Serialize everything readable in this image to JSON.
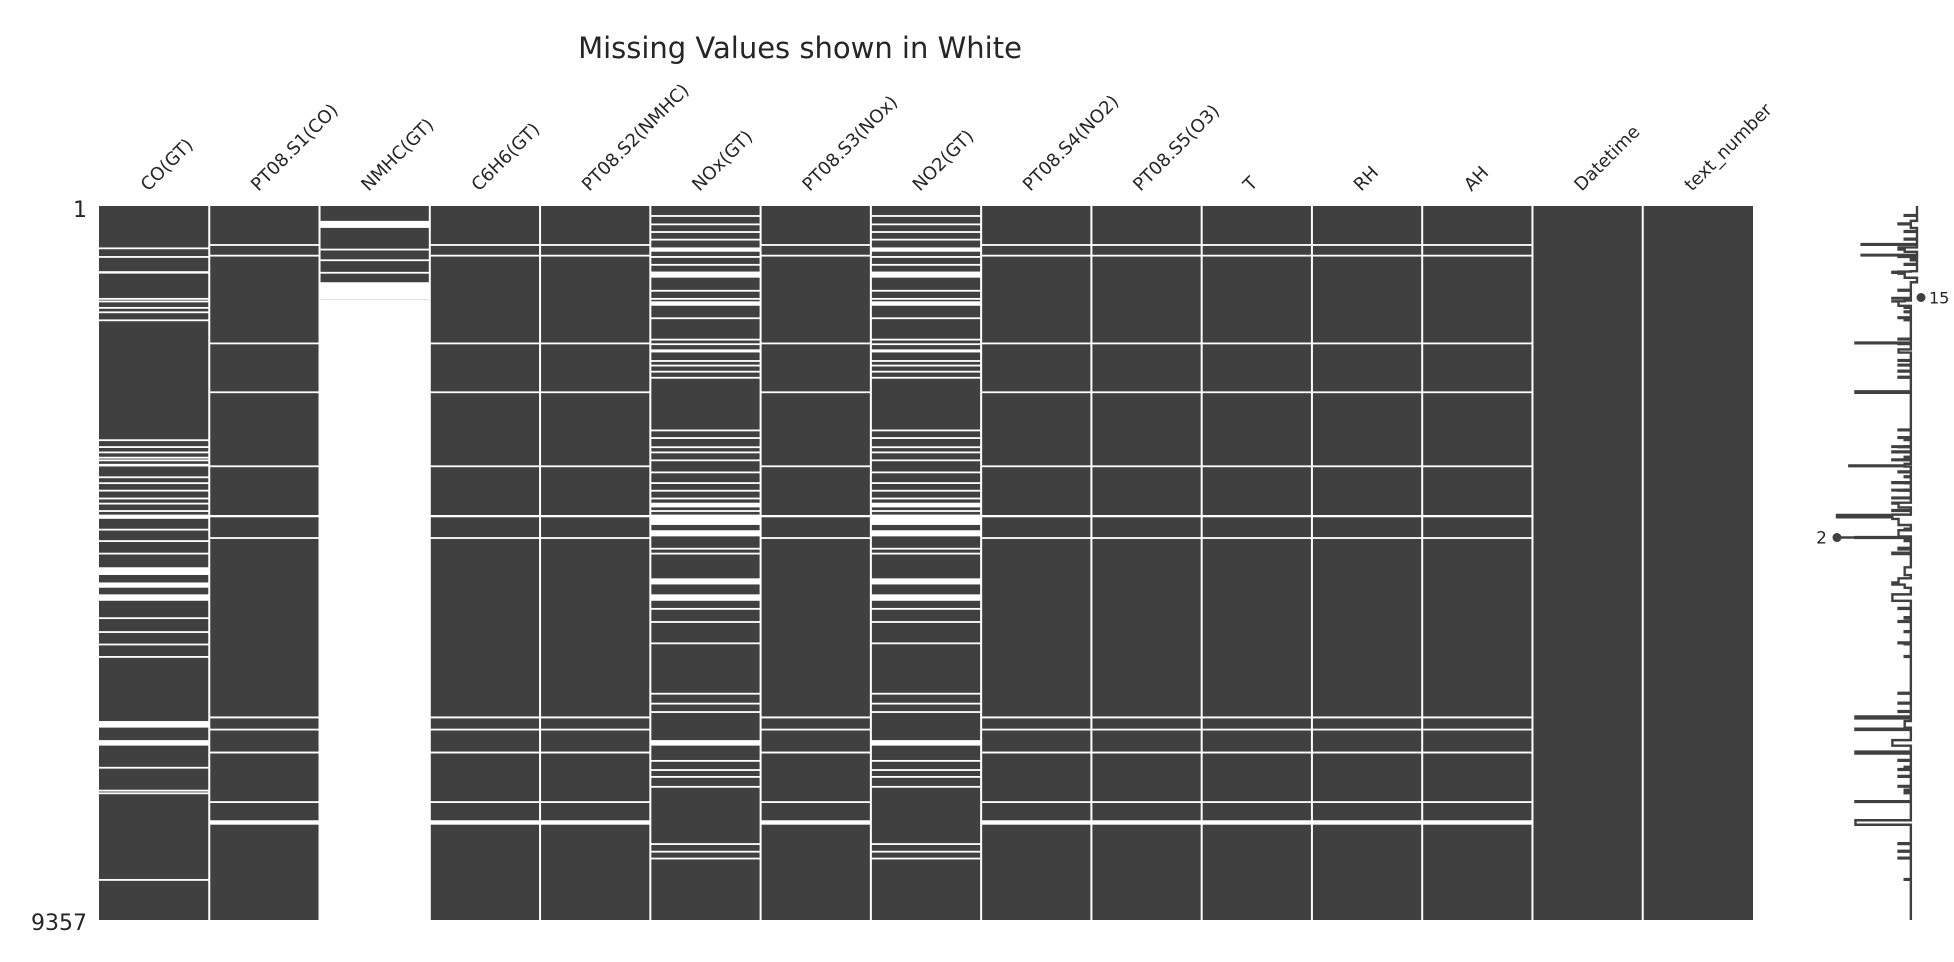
{
  "chart_data": {
    "type": "heatmap",
    "title": "Missing Values shown in White",
    "columns": [
      "CO(GT)",
      "PT08.S1(CO)",
      "NMHC(GT)",
      "C6H6(GT)",
      "PT08.S2(NMHC)",
      "NOx(GT)",
      "PT08.S3(NOx)",
      "NO2(GT)",
      "PT08.S4(NO2)",
      "PT08.S5(O3)",
      "T",
      "RH",
      "AH",
      "Datetime",
      "text_number"
    ],
    "row_labels": {
      "first": "1",
      "last": "9357"
    },
    "n_rows": 9357,
    "colors": {
      "present": "#404040",
      "missing": "#ffffff"
    },
    "missing_blocks": [
      {
        "column": "CO(GT)",
        "rows": [
          [
            544,
            555
          ],
          [
            657,
            667
          ],
          [
            855,
            887
          ],
          [
            1206,
            1213
          ],
          [
            1240,
            1251
          ],
          [
            1324,
            1334
          ],
          [
            1382,
            1391
          ],
          [
            1487,
            1496
          ],
          [
            3058,
            3067
          ],
          [
            3148,
            3157
          ],
          [
            3218,
            3227
          ],
          [
            3287,
            3296
          ],
          [
            3322,
            3331
          ],
          [
            3380,
            3414
          ],
          [
            3544,
            3553
          ],
          [
            3621,
            3634
          ],
          [
            3719,
            3727
          ],
          [
            3822,
            3831
          ],
          [
            3889,
            3899
          ],
          [
            3986,
            3995
          ],
          [
            4045,
            4100
          ],
          [
            4230,
            4240
          ],
          [
            4380,
            4390
          ],
          [
            4544,
            4561
          ],
          [
            4735,
            4836
          ],
          [
            4934,
            5003
          ],
          [
            5090,
            5174
          ],
          [
            5390,
            5405
          ],
          [
            5572,
            5582
          ],
          [
            5735,
            5744
          ],
          [
            5898,
            5908
          ],
          [
            6750,
            6836
          ],
          [
            7000,
            7072
          ],
          [
            7350,
            7359
          ],
          [
            7650,
            7659
          ],
          [
            7685,
            7694
          ],
          [
            8820,
            8829
          ]
        ]
      },
      {
        "column": "PT08.S1(CO)",
        "rows": [
          [
            500,
            509
          ],
          [
            640,
            648
          ],
          [
            1790,
            1799
          ],
          [
            2430,
            2448
          ],
          [
            3400,
            3409
          ],
          [
            4050,
            4080
          ],
          [
            4340,
            4349
          ],
          [
            6690,
            6715
          ],
          [
            6850,
            6866
          ],
          [
            7150,
            7175
          ],
          [
            7800,
            7809
          ],
          [
            8050,
            8108
          ]
        ]
      },
      {
        "column": "NMHC(GT)",
        "rows": [
          [
            196,
            288
          ],
          [
            560,
            571
          ],
          [
            700,
            712
          ],
          [
            864,
            875
          ],
          [
            1000,
            1229
          ],
          [
            1230,
            9357
          ]
        ]
      },
      {
        "column": "C6H6(GT)",
        "rows": [
          [
            500,
            509
          ],
          [
            640,
            648
          ],
          [
            1790,
            1799
          ],
          [
            2430,
            2448
          ],
          [
            3400,
            3409
          ],
          [
            4050,
            4080
          ],
          [
            4340,
            4349
          ],
          [
            6690,
            6715
          ],
          [
            6850,
            6866
          ],
          [
            7150,
            7175
          ],
          [
            7800,
            7809
          ],
          [
            8050,
            8108
          ]
        ]
      },
      {
        "column": "PT08.S2(NMHC)",
        "rows": [
          [
            500,
            509
          ],
          [
            640,
            648
          ],
          [
            1790,
            1799
          ],
          [
            2430,
            2448
          ],
          [
            3400,
            3409
          ],
          [
            4050,
            4080
          ],
          [
            4340,
            4349
          ],
          [
            6690,
            6715
          ],
          [
            6850,
            6866
          ],
          [
            7150,
            7175
          ],
          [
            7800,
            7809
          ],
          [
            8050,
            8108
          ]
        ]
      },
      {
        "column": "NOx(GT)",
        "rows": [
          [
            120,
            129
          ],
          [
            230,
            239
          ],
          [
            330,
            339
          ],
          [
            430,
            439
          ],
          [
            544,
            600
          ],
          [
            657,
            667
          ],
          [
            760,
            770
          ],
          [
            860,
            940
          ],
          [
            1100,
            1109
          ],
          [
            1206,
            1213
          ],
          [
            1250,
            1308
          ],
          [
            1460,
            1469
          ],
          [
            1740,
            1749
          ],
          [
            1800,
            1809
          ],
          [
            1880,
            1920
          ],
          [
            2020,
            2029
          ],
          [
            2080,
            2089
          ],
          [
            2160,
            2169
          ],
          [
            2240,
            2249
          ],
          [
            2930,
            2939
          ],
          [
            3030,
            3039
          ],
          [
            3150,
            3160
          ],
          [
            3218,
            3227
          ],
          [
            3322,
            3331
          ],
          [
            3480,
            3489
          ],
          [
            3620,
            3630
          ],
          [
            3720,
            3730
          ],
          [
            3822,
            3831
          ],
          [
            3889,
            3950
          ],
          [
            3986,
            3995
          ],
          [
            4045,
            4180
          ],
          [
            4250,
            4330
          ],
          [
            4480,
            4500
          ],
          [
            4544,
            4561
          ],
          [
            4880,
            4960
          ],
          [
            5090,
            5174
          ],
          [
            5268,
            5280
          ],
          [
            5440,
            5450
          ],
          [
            5720,
            5730
          ],
          [
            6380,
            6390
          ],
          [
            6510,
            6520
          ],
          [
            6620,
            6630
          ],
          [
            7000,
            7072
          ],
          [
            7260,
            7270
          ],
          [
            7380,
            7390
          ],
          [
            7470,
            7480
          ],
          [
            7600,
            7609
          ],
          [
            8350,
            8360
          ],
          [
            8450,
            8460
          ],
          [
            8540,
            8549
          ]
        ]
      },
      {
        "column": "PT08.S3(NOx)",
        "rows": [
          [
            500,
            509
          ],
          [
            640,
            648
          ],
          [
            1790,
            1799
          ],
          [
            2430,
            2448
          ],
          [
            3400,
            3409
          ],
          [
            4050,
            4080
          ],
          [
            4340,
            4349
          ],
          [
            6690,
            6715
          ],
          [
            6850,
            6866
          ],
          [
            7150,
            7175
          ],
          [
            7800,
            7809
          ],
          [
            8050,
            8108
          ]
        ]
      },
      {
        "column": "NO2(GT)",
        "rows": [
          [
            120,
            129
          ],
          [
            230,
            239
          ],
          [
            330,
            339
          ],
          [
            430,
            439
          ],
          [
            544,
            600
          ],
          [
            657,
            667
          ],
          [
            760,
            770
          ],
          [
            860,
            940
          ],
          [
            1100,
            1109
          ],
          [
            1206,
            1213
          ],
          [
            1250,
            1308
          ],
          [
            1460,
            1469
          ],
          [
            1740,
            1749
          ],
          [
            1800,
            1809
          ],
          [
            1880,
            1920
          ],
          [
            2020,
            2029
          ],
          [
            2080,
            2089
          ],
          [
            2160,
            2169
          ],
          [
            2240,
            2249
          ],
          [
            2930,
            2939
          ],
          [
            3030,
            3039
          ],
          [
            3150,
            3160
          ],
          [
            3218,
            3227
          ],
          [
            3322,
            3331
          ],
          [
            3480,
            3489
          ],
          [
            3620,
            3630
          ],
          [
            3720,
            3730
          ],
          [
            3822,
            3831
          ],
          [
            3889,
            3950
          ],
          [
            3986,
            3995
          ],
          [
            4045,
            4180
          ],
          [
            4250,
            4330
          ],
          [
            4480,
            4500
          ],
          [
            4544,
            4561
          ],
          [
            4880,
            4960
          ],
          [
            5090,
            5174
          ],
          [
            5268,
            5280
          ],
          [
            5440,
            5450
          ],
          [
            5720,
            5730
          ],
          [
            6380,
            6390
          ],
          [
            6510,
            6520
          ],
          [
            6620,
            6630
          ],
          [
            7000,
            7072
          ],
          [
            7260,
            7270
          ],
          [
            7380,
            7390
          ],
          [
            7470,
            7480
          ],
          [
            7600,
            7609
          ],
          [
            8350,
            8360
          ],
          [
            8450,
            8460
          ],
          [
            8540,
            8549
          ]
        ]
      },
      {
        "column": "PT08.S4(NO2)",
        "rows": [
          [
            500,
            509
          ],
          [
            640,
            648
          ],
          [
            1790,
            1799
          ],
          [
            2430,
            2448
          ],
          [
            3400,
            3409
          ],
          [
            4050,
            4080
          ],
          [
            4340,
            4349
          ],
          [
            6690,
            6715
          ],
          [
            6850,
            6866
          ],
          [
            7150,
            7175
          ],
          [
            7800,
            7809
          ],
          [
            8050,
            8108
          ]
        ]
      },
      {
        "column": "PT08.S5(O3)",
        "rows": [
          [
            500,
            509
          ],
          [
            640,
            648
          ],
          [
            1790,
            1799
          ],
          [
            2430,
            2448
          ],
          [
            3400,
            3409
          ],
          [
            4050,
            4080
          ],
          [
            4340,
            4349
          ],
          [
            6690,
            6715
          ],
          [
            6850,
            6866
          ],
          [
            7150,
            7175
          ],
          [
            7800,
            7809
          ],
          [
            8050,
            8108
          ]
        ]
      },
      {
        "column": "T",
        "rows": [
          [
            500,
            509
          ],
          [
            640,
            648
          ],
          [
            1790,
            1799
          ],
          [
            2430,
            2448
          ],
          [
            3400,
            3409
          ],
          [
            4050,
            4080
          ],
          [
            4340,
            4349
          ],
          [
            6690,
            6715
          ],
          [
            6850,
            6866
          ],
          [
            7150,
            7175
          ],
          [
            7800,
            7809
          ],
          [
            8050,
            8108
          ]
        ]
      },
      {
        "column": "RH",
        "rows": [
          [
            500,
            509
          ],
          [
            640,
            648
          ],
          [
            1790,
            1799
          ],
          [
            2430,
            2448
          ],
          [
            3400,
            3409
          ],
          [
            4050,
            4080
          ],
          [
            4340,
            4349
          ],
          [
            6690,
            6715
          ],
          [
            6850,
            6866
          ],
          [
            7150,
            7175
          ],
          [
            7800,
            7809
          ],
          [
            8050,
            8108
          ]
        ]
      },
      {
        "column": "AH",
        "rows": [
          [
            500,
            509
          ],
          [
            640,
            648
          ],
          [
            1790,
            1799
          ],
          [
            2430,
            2448
          ],
          [
            3400,
            3409
          ],
          [
            4050,
            4080
          ],
          [
            4340,
            4349
          ],
          [
            6690,
            6715
          ],
          [
            6850,
            6866
          ],
          [
            7150,
            7175
          ],
          [
            7800,
            7809
          ],
          [
            8050,
            8108
          ]
        ]
      },
      {
        "column": "Datetime",
        "rows": []
      },
      {
        "column": "text_number",
        "rows": []
      }
    ],
    "sparkline": {
      "max": 15,
      "min": 2,
      "max_label": "15",
      "min_label": "2",
      "max_row": 1200,
      "min_row": 4345
    }
  }
}
